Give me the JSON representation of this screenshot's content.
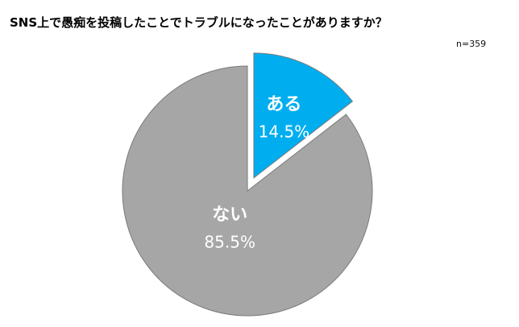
{
  "chart_data": {
    "type": "pie",
    "title": "SNS上で愚痴を投稿したことでトラブルになったことがありますか？",
    "note": "n=359",
    "slices": [
      {
        "label": "ある",
        "value": 14.5,
        "display": "14.5%",
        "color": "#00AEEF",
        "exploded": true
      },
      {
        "label": "ない",
        "value": 85.5,
        "display": "85.5%",
        "color": "#A6A6A6",
        "exploded": false
      }
    ]
  }
}
